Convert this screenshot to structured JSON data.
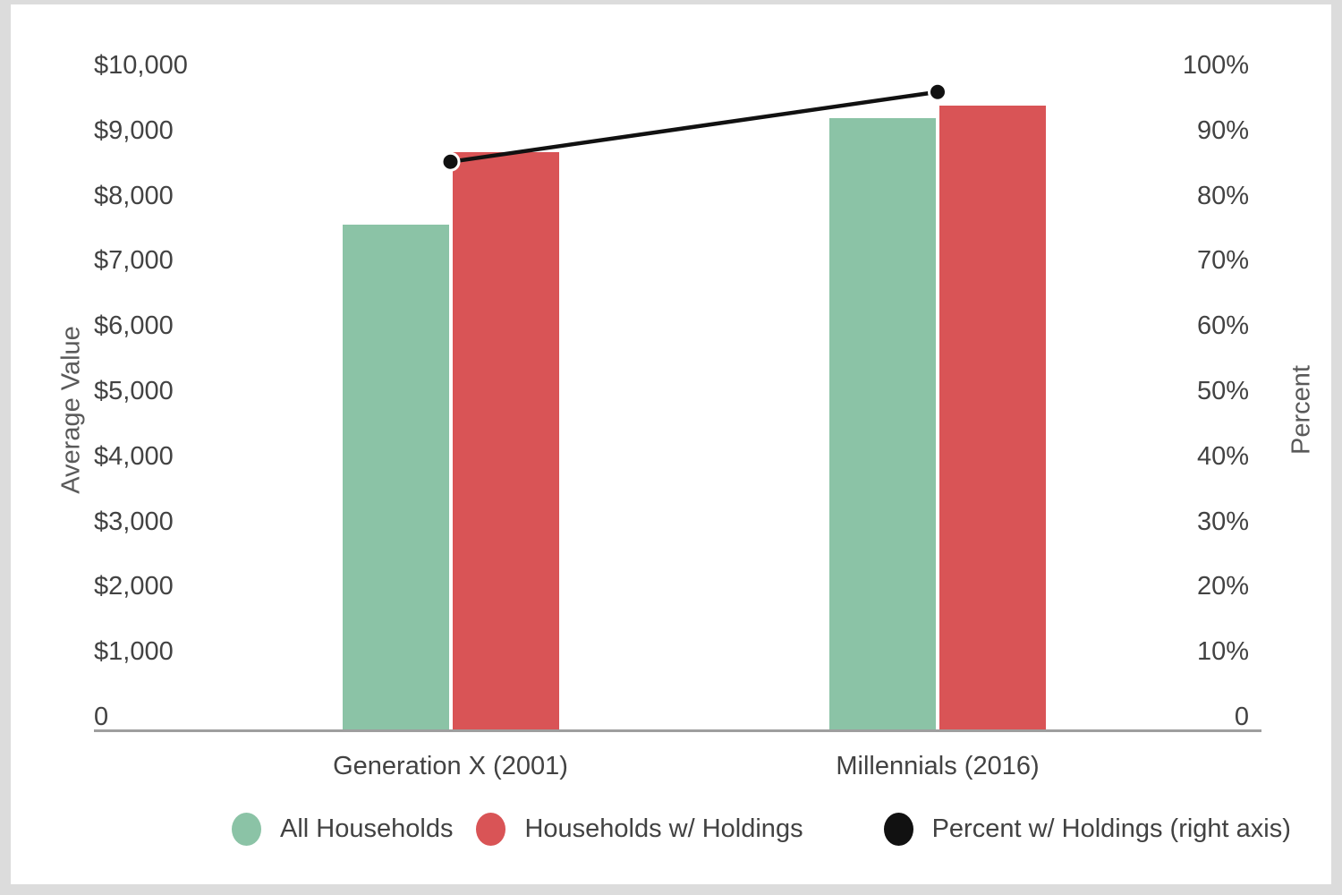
{
  "colors": {
    "background": "#ffffff",
    "frame": "#dcdcdc",
    "axis_line": "#9e9e9e",
    "text": "#424242",
    "axis_title_text": "#595959",
    "bar_green": "#8bc3a6",
    "bar_red": "#d95456",
    "line_black": "#111111",
    "point_outline": "#ffffff"
  },
  "chart_data": {
    "type": "bar",
    "subtype": "combo-bar-line-dual-axis",
    "title": "",
    "categories": [
      "Generation X (2001)",
      "Millennials (2016)"
    ],
    "series": [
      {
        "name": "All Households",
        "type": "bar",
        "axis": "left",
        "color_key": "bar_green",
        "values": [
          7600,
          9200
        ]
      },
      {
        "name": "Households w/ Holdings",
        "type": "bar",
        "axis": "left",
        "color_key": "bar_red",
        "values": [
          8700,
          9400
        ]
      },
      {
        "name": "Percent w/ Holdings (right axis)",
        "type": "line",
        "axis": "right",
        "color_key": "line_black",
        "values": [
          85.5,
          96
        ]
      }
    ],
    "left_axis": {
      "title": "Average Value",
      "range": [
        0,
        10000
      ],
      "ticks": [
        "$10,000",
        "$9,000",
        "$8,000",
        "$7,000",
        "$6,000",
        "$5,000",
        "$4,000",
        "$3,000",
        "$2,000",
        "$1,000",
        "0"
      ]
    },
    "right_axis": {
      "title": "Percent",
      "range": [
        0,
        100
      ],
      "ticks": [
        "100%",
        "90%",
        "80%",
        "70%",
        "60%",
        "50%",
        "40%",
        "30%",
        "20%",
        "10%",
        "0"
      ]
    },
    "legend_position": "bottom",
    "grid": false
  }
}
